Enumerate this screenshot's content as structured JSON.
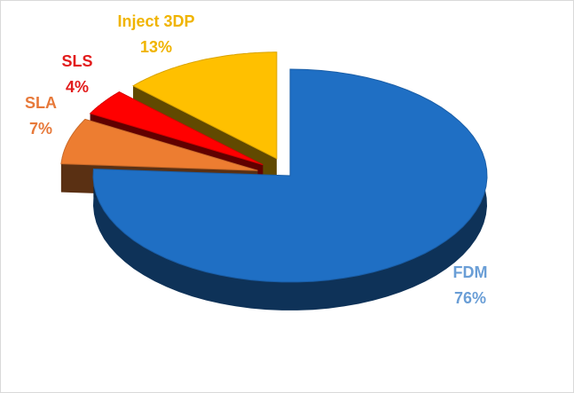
{
  "chart_data": {
    "type": "pie",
    "title": "",
    "slices": [
      {
        "label": "FDM",
        "value": 76,
        "pct_label": "76%",
        "color": "#1f6fc4",
        "label_color": "#6a9ed6"
      },
      {
        "label": "SLA",
        "value": 7,
        "pct_label": "7%",
        "color": "#ed7d31",
        "label_color": "#e7793a"
      },
      {
        "label": "SLS",
        "value": 4,
        "pct_label": "4%",
        "color": "#ff0000",
        "label_color": "#e21b1b"
      },
      {
        "label": "Inject 3DP",
        "value": 13,
        "pct_label": "13%",
        "color": "#ffc000",
        "label_color": "#f0b400"
      }
    ],
    "legend": "none",
    "style": "3d-exploded"
  }
}
